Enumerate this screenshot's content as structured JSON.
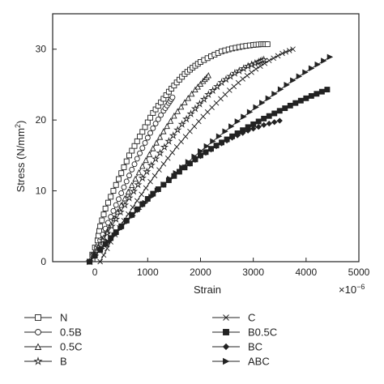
{
  "chart_data": {
    "type": "line",
    "title": "",
    "xlabel": "Strain",
    "x_multiplier": "×10",
    "x_multiplier_exponent": "−6",
    "ylabel": "Stress (N/mm",
    "ylabel_sup": "2",
    "ylabel_close": ")",
    "xlim": [
      -800,
      5000
    ],
    "ylim": [
      0,
      35
    ],
    "xticks": [
      0,
      1000,
      2000,
      3000,
      4000,
      5000
    ],
    "yticks": [
      0,
      10,
      20,
      30
    ],
    "grid": false,
    "legend_position": "below",
    "series": [
      {
        "name": "N",
        "marker": "square",
        "x": [
          -100,
          50,
          100,
          200,
          350,
          500,
          650,
          800,
          950,
          1100,
          1250,
          1400,
          1550,
          1700,
          1850,
          2000,
          2200,
          2400,
          2600,
          2800,
          3000,
          3150,
          3270
        ],
        "y": [
          0,
          3,
          5,
          7.5,
          10,
          12.5,
          15,
          17,
          19,
          21,
          22.5,
          24,
          25.3,
          26.5,
          27.4,
          28.2,
          29,
          29.7,
          30.1,
          30.4,
          30.6,
          30.7,
          30.7
        ]
      },
      {
        "name": "0.5B",
        "marker": "circle",
        "x": [
          -100,
          100,
          250,
          400,
          550,
          700,
          850,
          1000,
          1150,
          1300,
          1400,
          1470
        ],
        "y": [
          0,
          3,
          5.5,
          8,
          10.5,
          13,
          15.3,
          17.5,
          19.5,
          21.3,
          22.4,
          23.2
        ]
      },
      {
        "name": "0.5C",
        "marker": "triangle-up",
        "x": [
          -100,
          100,
          300,
          500,
          700,
          900,
          1100,
          1300,
          1500,
          1700,
          1900,
          2050,
          2150
        ],
        "y": [
          0,
          2.5,
          5.2,
          8,
          10.8,
          13.5,
          16,
          18.4,
          20.6,
          22.5,
          24.3,
          25.5,
          26.3
        ]
      },
      {
        "name": "B",
        "marker": "star",
        "x": [
          -100,
          150,
          400,
          650,
          900,
          1150,
          1400,
          1650,
          1900,
          2150,
          2400,
          2650,
          2900,
          3100,
          3200
        ],
        "y": [
          0,
          3,
          6,
          9,
          11.8,
          14.5,
          17,
          19.4,
          21.6,
          23.6,
          25.3,
          26.6,
          27.6,
          28.2,
          28.5
        ]
      },
      {
        "name": "C",
        "marker": "x",
        "x": [
          100,
          300,
          550,
          800,
          1050,
          1300,
          1550,
          1800,
          2050,
          2300,
          2550,
          2800,
          3050,
          3300,
          3550,
          3750
        ],
        "y": [
          0,
          2.8,
          5.8,
          8.6,
          11.3,
          13.8,
          16.2,
          18.4,
          20.5,
          22.4,
          24.2,
          25.8,
          27.2,
          28.4,
          29.4,
          30
        ]
      },
      {
        "name": "B0.5C",
        "marker": "square-filled",
        "x": [
          -100,
          200,
          500,
          800,
          1100,
          1400,
          1700,
          2000,
          2300,
          2600,
          2900,
          3200,
          3500,
          3800,
          4100,
          4400
        ],
        "y": [
          0,
          2.5,
          5,
          7.4,
          9.6,
          11.5,
          13.3,
          15,
          16.4,
          17.7,
          19,
          20.2,
          21.3,
          22.4,
          23.4,
          24.3
        ]
      },
      {
        "name": "BC",
        "marker": "diamond-filled",
        "x": [
          -100,
          200,
          500,
          800,
          1100,
          1400,
          1700,
          2000,
          2300,
          2600,
          2900,
          3200,
          3500
        ],
        "y": [
          0,
          2.4,
          4.9,
          7.3,
          9.5,
          11.5,
          13.3,
          14.9,
          16.3,
          17.5,
          18.5,
          19.3,
          19.9
        ]
      },
      {
        "name": "ABC",
        "marker": "triangle-right-filled",
        "x": [
          -100,
          250,
          600,
          950,
          1300,
          1650,
          2000,
          2350,
          2700,
          3050,
          3400,
          3750,
          4100,
          4450
        ],
        "y": [
          0,
          2.8,
          5.6,
          8.3,
          10.9,
          13.3,
          15.6,
          17.7,
          19.8,
          21.8,
          23.7,
          25.6,
          27.3,
          28.9
        ]
      }
    ]
  }
}
